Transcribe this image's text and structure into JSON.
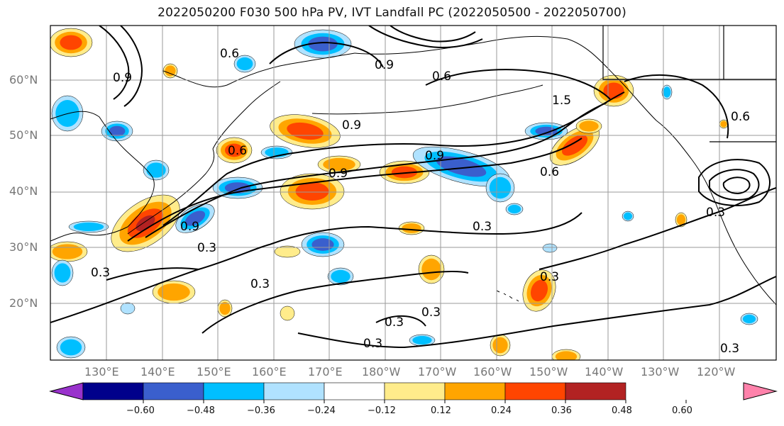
{
  "title": "2022050200 F030 500 hPa PV, IVT Landfall PC (2022050500 - 2022050700)",
  "lat_labels": [
    "60°N",
    "50°N",
    "40°N",
    "30°N",
    "20°N"
  ],
  "lon_labels": [
    "130°E",
    "140°E",
    "150°E",
    "160°E",
    "170°E",
    "180°W",
    "170°W",
    "160°W",
    "150°W",
    "140°W",
    "130°W",
    "120°W"
  ],
  "colorbar": {
    "ticks": [
      "−0.60",
      "−0.48",
      "−0.36",
      "−0.24",
      "−0.12",
      "0.12",
      "0.24",
      "0.36",
      "0.48",
      "0.60"
    ],
    "colors": [
      "#9932cc",
      "#00008b",
      "#3a5fcd",
      "#00bfff",
      "#b0e2ff",
      "#ffffff",
      "#ffec8b",
      "#ffa500",
      "#ff4500",
      "#b22222",
      "#ff82ab"
    ]
  },
  "contour_labels": [
    "0.3",
    "0.6",
    "0.9",
    "1.5"
  ],
  "fill_colors": {
    "pos1": "#ffec8b",
    "pos2": "#ffa500",
    "pos3": "#ff4500",
    "pos4": "#b22222",
    "neg1": "#b0e2ff",
    "neg2": "#00bfff",
    "neg3": "#3a5fcd",
    "neg4": "#00008b"
  }
}
